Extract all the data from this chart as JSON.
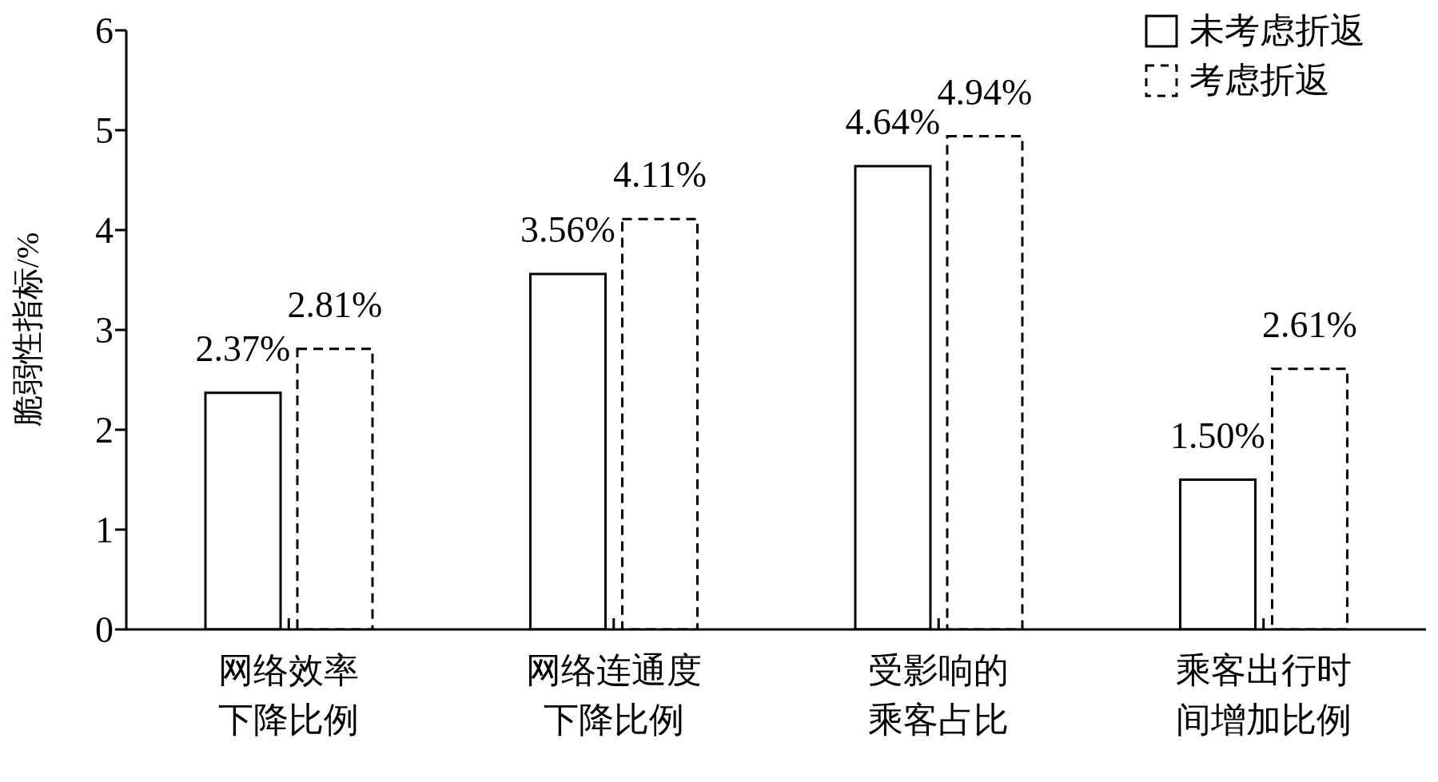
{
  "chart_data": {
    "type": "bar",
    "ylabel": "脆弱性指标/%",
    "categories": [
      "网络效率下降比例",
      "网络连通度下降比例",
      "受影响的乘客占比",
      "乘客出行时间增加比例"
    ],
    "series": [
      {
        "name": "未考虑折返",
        "color": "#000000",
        "line_style": "solid",
        "values": [
          2.37,
          3.56,
          4.64,
          1.5
        ],
        "value_labels": [
          "2.37%",
          "3.56%",
          "4.64%",
          "1.50%"
        ]
      },
      {
        "name": "考虑折返",
        "color": "#000000",
        "line_style": "dashed",
        "values": [
          2.81,
          4.11,
          4.94,
          2.61
        ],
        "value_labels": [
          "2.81%",
          "4.11%",
          "4.94%",
          "2.61%"
        ]
      }
    ],
    "ylim": [
      0,
      6
    ],
    "yticks": [
      0,
      1,
      2,
      3,
      4,
      5,
      6
    ],
    "legend": "top right"
  }
}
